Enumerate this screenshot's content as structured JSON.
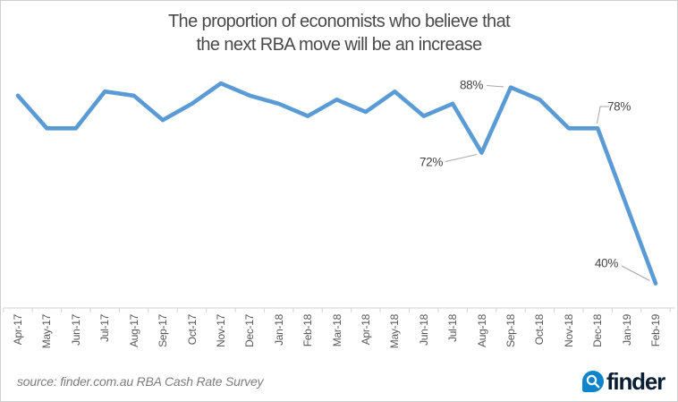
{
  "title": {
    "line1": "The proportion of economists who believe that",
    "line2": "the next RBA move will be an increase"
  },
  "source_text": "source: finder.com.au RBA Cash Rate Survey",
  "logo": {
    "text": "finder",
    "icon": "magnifier-icon",
    "mark_color": "#0E85CB",
    "text_color": "#0A1F33"
  },
  "colors": {
    "line": "#5B9BD5",
    "axis": "#D9D9D9",
    "tick": "#D9D9D9",
    "x_label": "#595959",
    "annotation_text": "#454545",
    "leader_line": "#A6A6A6",
    "title_text": "#4A4A4A",
    "source_text": "#7D7D7D",
    "frame_border": "#CFCFCF"
  },
  "chart_data": {
    "type": "line",
    "title": "The proportion of economists who believe that the next RBA move will be an increase",
    "xlabel": "",
    "ylabel": "",
    "unit": "%",
    "grid": false,
    "legend": false,
    "ylim": [
      34,
      92
    ],
    "line_color": "#5B9BD5",
    "categories": [
      "Apr-17",
      "May-17",
      "Jun-17",
      "Jul-17",
      "Aug-17",
      "Sep-17",
      "Oct-17",
      "Nov-17",
      "Dec-17",
      "Jan-18",
      "Feb-18",
      "Mar-18",
      "Apr-18",
      "May-18",
      "Jun-18",
      "Jul-18",
      "Aug-18",
      "Sep-18",
      "Oct-18",
      "Nov-18",
      "Dec-18",
      "Jan-19",
      "Feb-19"
    ],
    "values": [
      86,
      78,
      78,
      87,
      86,
      80,
      84,
      89,
      86,
      84,
      81,
      85,
      82,
      87,
      81,
      84,
      72,
      88,
      85,
      78,
      78,
      59,
      40
    ],
    "annotations": [
      {
        "category": "Aug-18",
        "text": "72%"
      },
      {
        "category": "Sep-18",
        "text": "88%"
      },
      {
        "category": "Dec-18",
        "text": "78%"
      },
      {
        "category": "Feb-19",
        "text": "40%"
      }
    ]
  }
}
